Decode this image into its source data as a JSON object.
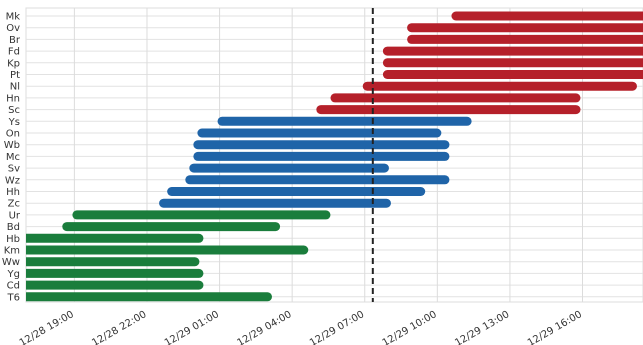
{
  "chart_data": {
    "type": "timeline",
    "x_axis": {
      "unit": "datetime",
      "range": [
        "2018-12-28T17:00",
        "2018-12-29T18:30"
      ],
      "tick_labels": [
        "12/28 19:00",
        "12/28 22:00",
        "12/29 01:00",
        "12/29 04:00",
        "12/29 07:00",
        "12/29 10:00",
        "12/29 13:00",
        "12/29 16:00"
      ],
      "tick_times": [
        "2018-12-28T19:00",
        "2018-12-28T22:00",
        "2018-12-29T01:00",
        "2018-12-29T04:00",
        "2018-12-29T07:00",
        "2018-12-29T10:00",
        "2018-12-29T13:00",
        "2018-12-29T16:00"
      ]
    },
    "grid": true,
    "reference_line": {
      "time": "2018-12-29T07:20",
      "style": "dashed",
      "color": "#222222"
    },
    "colors": {
      "red": "#b5202a",
      "blue": "#1f64a8",
      "green": "#1a7d3c"
    },
    "tasks": [
      {
        "label": "Mk",
        "start": "2018-12-29T10:35",
        "end": "2018-12-29T18:30",
        "color": "red"
      },
      {
        "label": "Ov",
        "start": "2018-12-29T08:45",
        "end": "2018-12-29T18:30",
        "color": "red"
      },
      {
        "label": "Br",
        "start": "2018-12-29T08:45",
        "end": "2018-12-29T18:30",
        "color": "red"
      },
      {
        "label": "Fd",
        "start": "2018-12-29T07:45",
        "end": "2018-12-29T18:30",
        "color": "red"
      },
      {
        "label": "Kp",
        "start": "2018-12-29T07:45",
        "end": "2018-12-29T18:30",
        "color": "red"
      },
      {
        "label": "Pt",
        "start": "2018-12-29T07:45",
        "end": "2018-12-29T18:30",
        "color": "red"
      },
      {
        "label": "Nl",
        "start": "2018-12-29T06:55",
        "end": "2018-12-29T18:15",
        "color": "red"
      },
      {
        "label": "Hn",
        "start": "2018-12-29T05:35",
        "end": "2018-12-29T15:55",
        "color": "red"
      },
      {
        "label": "Sc",
        "start": "2018-12-29T05:00",
        "end": "2018-12-29T15:55",
        "color": "red"
      },
      {
        "label": "Ys",
        "start": "2018-12-29T00:55",
        "end": "2018-12-29T11:25",
        "color": "blue"
      },
      {
        "label": "On",
        "start": "2018-12-29T00:05",
        "end": "2018-12-29T10:10",
        "color": "blue"
      },
      {
        "label": "Wb",
        "start": "2018-12-28T23:55",
        "end": "2018-12-29T10:30",
        "color": "blue"
      },
      {
        "label": "Mc",
        "start": "2018-12-28T23:55",
        "end": "2018-12-29T10:30",
        "color": "blue"
      },
      {
        "label": "Sv",
        "start": "2018-12-28T23:45",
        "end": "2018-12-29T08:00",
        "color": "blue"
      },
      {
        "label": "Wz",
        "start": "2018-12-28T23:35",
        "end": "2018-12-29T10:30",
        "color": "blue"
      },
      {
        "label": "Hh",
        "start": "2018-12-28T22:50",
        "end": "2018-12-29T09:30",
        "color": "blue"
      },
      {
        "label": "Zc",
        "start": "2018-12-28T22:30",
        "end": "2018-12-29T08:05",
        "color": "blue"
      },
      {
        "label": "Ur",
        "start": "2018-12-28T18:55",
        "end": "2018-12-29T05:35",
        "color": "green"
      },
      {
        "label": "Bd",
        "start": "2018-12-28T18:30",
        "end": "2018-12-29T03:30",
        "color": "green"
      },
      {
        "label": "Hb",
        "start": "2018-12-28T17:00",
        "end": "2018-12-29T00:20",
        "color": "green"
      },
      {
        "label": "Km",
        "start": "2018-12-28T17:00",
        "end": "2018-12-29T04:40",
        "color": "green"
      },
      {
        "label": "Ww",
        "start": "2018-12-28T17:00",
        "end": "2018-12-29T00:10",
        "color": "green"
      },
      {
        "label": "Yg",
        "start": "2018-12-28T17:00",
        "end": "2018-12-29T00:20",
        "color": "green"
      },
      {
        "label": "Cd",
        "start": "2018-12-28T17:00",
        "end": "2018-12-29T00:20",
        "color": "green"
      },
      {
        "label": "T6",
        "start": "2018-12-28T17:00",
        "end": "2018-12-29T03:10",
        "color": "green"
      }
    ]
  }
}
